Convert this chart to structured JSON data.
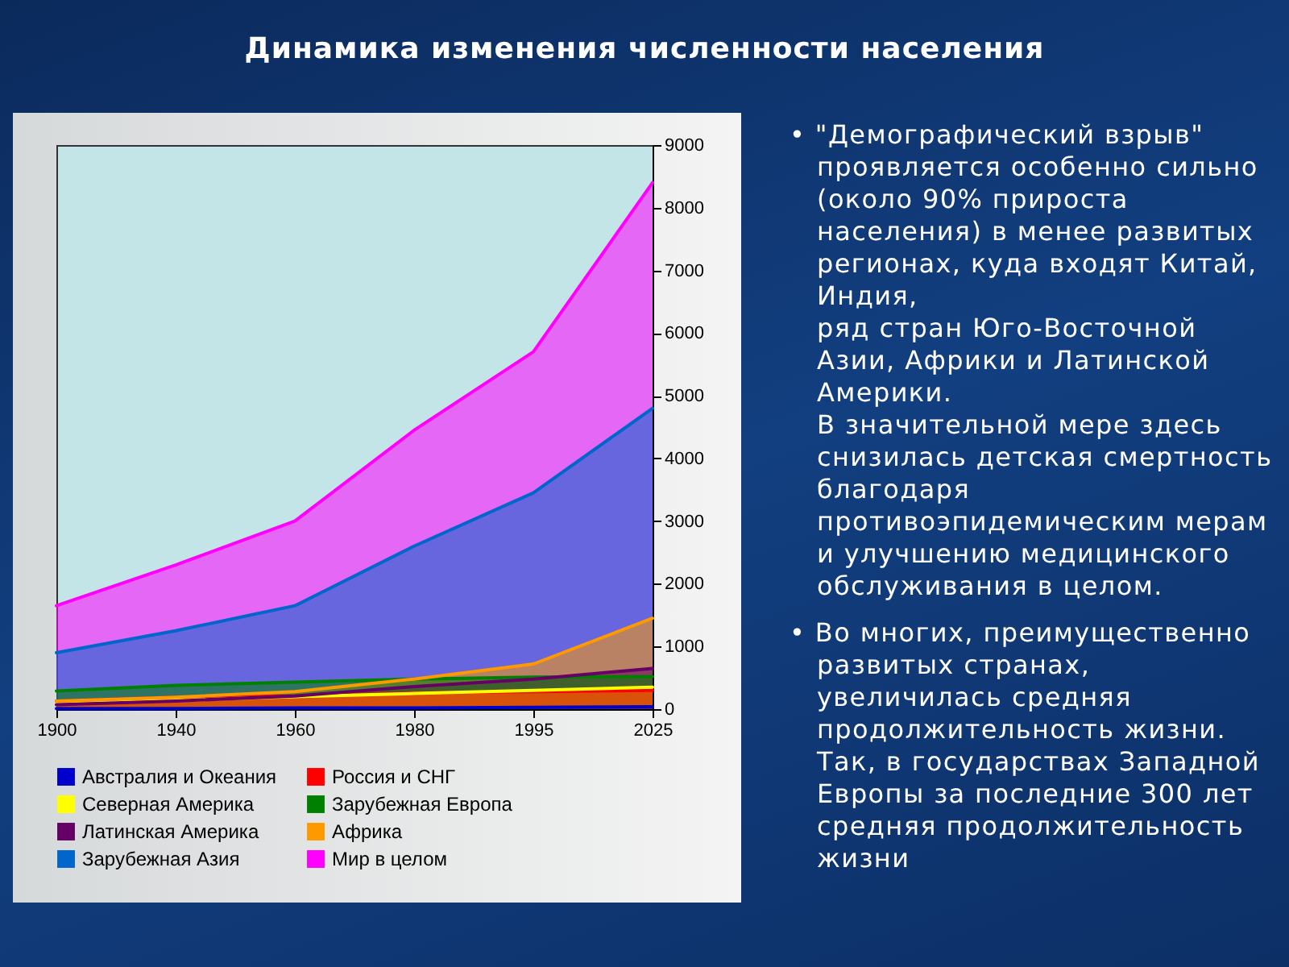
{
  "chart_data": {
    "type": "area",
    "title": "Динамика изменения численности населения",
    "categories": [
      "1900",
      "1940",
      "1960",
      "1980",
      "1995",
      "2025"
    ],
    "series": [
      {
        "name": "Австралия и Океания",
        "color": "#0000cc",
        "values": [
          10,
          10,
          20,
          20,
          30,
          40
        ]
      },
      {
        "name": "Россия и СНГ",
        "color": "#ff0000",
        "values": [
          130,
          190,
          210,
          260,
          280,
          300
        ]
      },
      {
        "name": "Северная Америка",
        "color": "#ffff00",
        "values": [
          80,
          140,
          200,
          250,
          300,
          350
        ]
      },
      {
        "name": "Зарубежная Европа",
        "color": "#008000",
        "values": [
          290,
          380,
          430,
          480,
          510,
          520
        ]
      },
      {
        "name": "Латинская Америка",
        "color": "#660066",
        "values": [
          70,
          130,
          210,
          360,
          480,
          650
        ]
      },
      {
        "name": "Африка",
        "color": "#ff9900",
        "values": [
          130,
          190,
          280,
          480,
          720,
          1450
        ]
      },
      {
        "name": "Зарубежная Азия",
        "color": "#0066cc",
        "values": [
          900,
          1250,
          1650,
          2600,
          3450,
          4800
        ]
      },
      {
        "name": "Мир в целом",
        "color": "#ff00ff",
        "values": [
          1650,
          2300,
          3000,
          4450,
          5700,
          8400
        ]
      }
    ],
    "ylim": [
      0,
      9000
    ],
    "yticks": [
      0,
      1000,
      2000,
      3000,
      4000,
      5000,
      6000,
      7000,
      8000,
      9000
    ],
    "grid": false,
    "legend": "bottom",
    "annotations": [
      "• \"Демографический взрыв\" проявляется особенно сильно (около 90% прироста населения) в менее развитых регионах, куда входят Китай, Индия,\nряд стран Юго-Восточной Азии, Африки и Латинской Америки.\nВ значительной мере здесь снизилась детская смертность благодаря противоэпидемическим мерам\nи улучшению медицинского обслуживания в целом.",
      "• Во многих, преимущественно развитых странах, увеличилась средняя продолжительность жизни. Так, в государствах Западной Европы за последние 300 лет средняя продолжительность жизни"
    ]
  }
}
